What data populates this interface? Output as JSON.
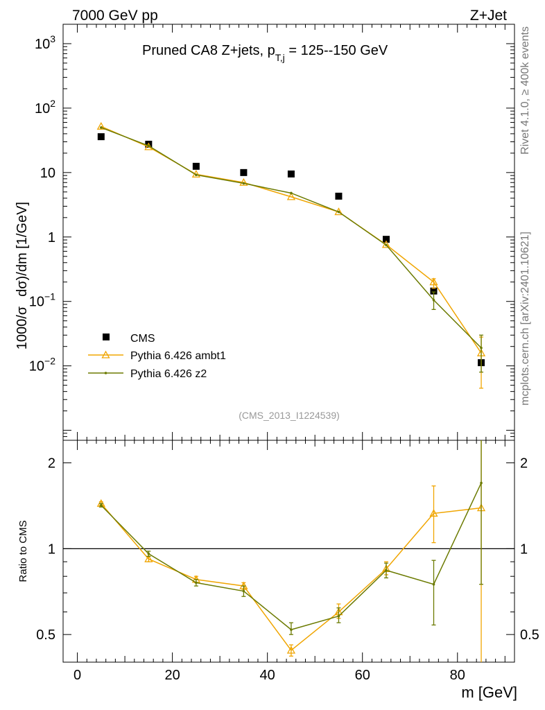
{
  "header": {
    "left": "7000 GeV pp",
    "right": "Z+Jet"
  },
  "side": {
    "rivet": "Rivet 4.1.0, ≥ 400k events",
    "mcplots": "mcplots.cern.ch [arXiv:2401.10621]"
  },
  "chart_data": [
    {
      "type": "scatter",
      "yscale": "log",
      "title": "Pruned CA8 Z+jets, p_T,j = 125--150 GeV",
      "title_main": "Pruned CA8 Z+jets, p",
      "title_sub": "T,j",
      "title_tail": " = 125--150 GeV",
      "ylabel": "1000/σ  dσ/dm [1/GeV]",
      "ylabel_main": "1000/σ",
      "ylabel_dsigma": "dσ)/dm [1/GeV]",
      "xlim": [
        -3,
        92
      ],
      "ylim": [
        0.0007,
        2000
      ],
      "yticks": [
        {
          "value": 1000,
          "base": "10",
          "exp": "3"
        },
        {
          "value": 100,
          "base": "10",
          "exp": "2"
        },
        {
          "value": 10,
          "base": "10",
          "exp": ""
        },
        {
          "value": 1,
          "base": "1",
          "exp": ""
        },
        {
          "value": 0.1,
          "base": "10",
          "exp": "−1"
        },
        {
          "value": 0.01,
          "base": "10",
          "exp": "−2"
        }
      ],
      "x": [
        5,
        15,
        25,
        35,
        45,
        55,
        65,
        75,
        85
      ],
      "series": [
        {
          "name": "CMS",
          "color": "#000000",
          "marker": "square",
          "values": [
            36,
            27.5,
            12.5,
            10,
            9.5,
            4.3,
            0.92,
            0.145,
            0.0112
          ]
        },
        {
          "name": "Pythia 6.426 ambt1",
          "color": "#f0a500",
          "marker": "triangle",
          "values": [
            52,
            25,
            9.4,
            7,
            4.2,
            2.45,
            0.76,
            0.2,
            0.0158
          ],
          "err_lo": [
            0,
            0,
            0,
            0,
            0,
            0,
            0,
            0.16,
            0.0045
          ],
          "err_hi": [
            0,
            0,
            0,
            0,
            0,
            0,
            0,
            0.225,
            0.028
          ]
        },
        {
          "name": "Pythia 6.426 z2",
          "color": "#6b7a00",
          "marker": "dot",
          "values": [
            50,
            26,
            9.2,
            6.8,
            4.8,
            2.45,
            0.75,
            0.105,
            0.019
          ],
          "err_lo": [
            0,
            0,
            0,
            0,
            0,
            0,
            0,
            0.075,
            0.008
          ],
          "err_hi": [
            0,
            0,
            0,
            0,
            0,
            0,
            0,
            0.14,
            0.03
          ]
        }
      ],
      "annotation": "(CMS_2013_I1224539)",
      "legend_position": "lower-left"
    },
    {
      "type": "line",
      "yscale": "log",
      "ylabel": "Ratio to CMS",
      "xlabel": "m [GeV]",
      "xlim": [
        -3,
        92
      ],
      "ylim": [
        0.4,
        2.4
      ],
      "xticks": [
        0,
        20,
        40,
        60,
        80
      ],
      "xtick_labels": [
        "0",
        "20",
        "40",
        "60",
        "80"
      ],
      "yticks": [
        0.5,
        1,
        2
      ],
      "ytick_labels": [
        "0.5",
        "1",
        "2"
      ],
      "reference": 1,
      "x": [
        5,
        15,
        25,
        35,
        45,
        55,
        65,
        75,
        85
      ],
      "series": [
        {
          "name": "Pythia 6.426 ambt1",
          "color": "#f0a500",
          "marker": "triangle",
          "values": [
            1.44,
            0.92,
            0.78,
            0.74,
            0.44,
            0.6,
            0.85,
            1.33,
            1.39
          ],
          "err_lo": [
            1.42,
            0.9,
            0.76,
            0.72,
            0.42,
            0.57,
            0.81,
            1.05,
            0.35
          ],
          "err_hi": [
            1.46,
            0.94,
            0.8,
            0.76,
            0.46,
            0.64,
            0.9,
            1.66,
            2.4
          ]
        },
        {
          "name": "Pythia 6.426 z2",
          "color": "#6b7a00",
          "marker": "dot",
          "values": [
            1.42,
            0.96,
            0.76,
            0.71,
            0.52,
            0.58,
            0.84,
            0.75,
            1.7
          ],
          "err_lo": [
            1.4,
            0.94,
            0.74,
            0.68,
            0.5,
            0.55,
            0.79,
            0.54,
            0.75
          ],
          "err_hi": [
            1.44,
            0.98,
            0.78,
            0.74,
            0.55,
            0.62,
            0.89,
            0.91,
            2.4
          ]
        }
      ]
    }
  ]
}
